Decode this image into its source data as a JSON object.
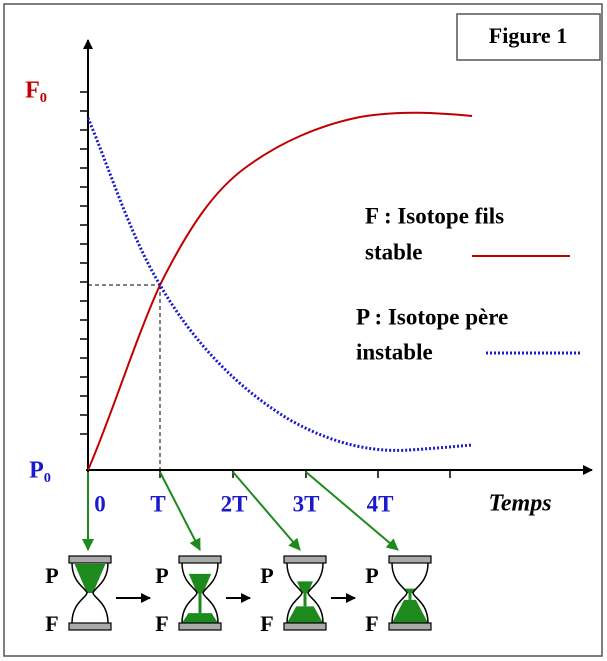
{
  "figure_label": "Figure 1",
  "y_axis": {
    "top_label": "F₀",
    "bottom_label": "P₀"
  },
  "x_axis": {
    "ticks": [
      "0",
      "T",
      "2T",
      "3T",
      "4T"
    ],
    "title": "Temps"
  },
  "legend": [
    {
      "lines": [
        "F : Isotope fils",
        "stable"
      ]
    },
    {
      "lines": [
        "P : Isotope père",
        "instable"
      ]
    }
  ],
  "hourglasses": [
    {
      "top": "P",
      "bottom": "F"
    },
    {
      "top": "P",
      "bottom": "F"
    },
    {
      "top": "P",
      "bottom": "F"
    },
    {
      "top": "P",
      "bottom": "F"
    }
  ]
}
